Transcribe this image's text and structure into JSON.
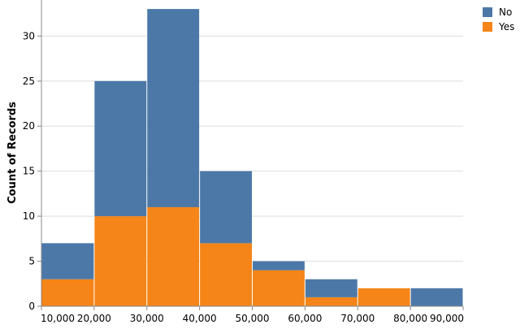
{
  "chart_data": {
    "type": "bar",
    "subtype": "stacked-histogram",
    "title": "",
    "xlabel": "",
    "ylabel": "Count of Records",
    "bins": [
      [
        10000,
        20000
      ],
      [
        20000,
        30000
      ],
      [
        30000,
        40000
      ],
      [
        40000,
        50000
      ],
      [
        50000,
        60000
      ],
      [
        60000,
        70000
      ],
      [
        70000,
        80000
      ],
      [
        80000,
        90000
      ]
    ],
    "x_ticks": [
      10000,
      20000,
      30000,
      40000,
      50000,
      60000,
      70000,
      80000,
      90000
    ],
    "x_tick_labels": [
      "10,000",
      "20,000",
      "30,000",
      "40,000",
      "50,000",
      "60,000",
      "70,000",
      "80,000",
      "90,000"
    ],
    "xlim": [
      10000,
      90000
    ],
    "y_ticks": [
      0,
      5,
      10,
      15,
      20,
      25,
      30
    ],
    "y_tick_labels": [
      "0",
      "5",
      "10",
      "15",
      "20",
      "25",
      "30"
    ],
    "ylim": [
      0,
      34
    ],
    "grid": true,
    "legend": {
      "placement": "top-right"
    },
    "series": [
      {
        "name": "Yes",
        "color": "#f58518",
        "values": [
          3,
          10,
          11,
          7,
          4,
          1,
          2,
          0
        ]
      },
      {
        "name": "No",
        "color": "#4c78a8",
        "values": [
          4,
          15,
          22,
          8,
          1,
          2,
          0,
          2
        ]
      }
    ],
    "legend_order": [
      "No",
      "Yes"
    ]
  }
}
